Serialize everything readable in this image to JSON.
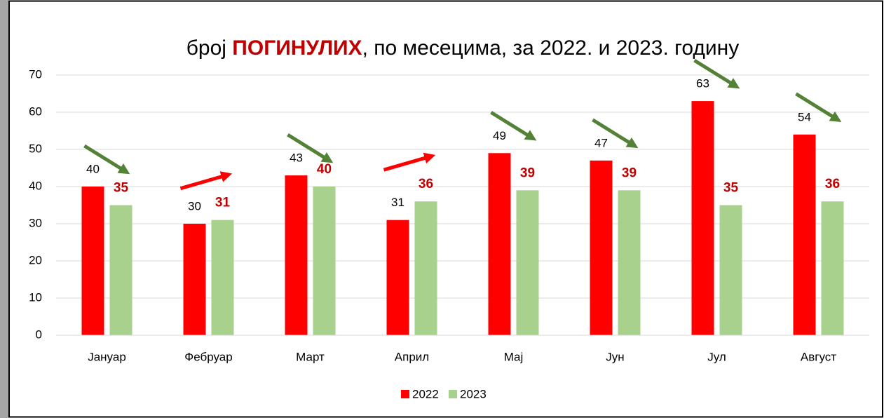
{
  "chart_data": {
    "type": "bar",
    "title_parts": [
      "број ",
      "ПОГИНУЛИХ",
      ", по месецима, за 2022. и 2023. годину"
    ],
    "categories": [
      "Јануар",
      "Фебруар",
      "Март",
      "Април",
      "Мај",
      "Јун",
      "Јул",
      "Август"
    ],
    "series": [
      {
        "name": "2022",
        "color": "#ff0000",
        "values": [
          40,
          30,
          43,
          31,
          49,
          47,
          63,
          54
        ]
      },
      {
        "name": "2023",
        "color": "#a9d18e",
        "values": [
          35,
          31,
          40,
          36,
          39,
          39,
          35,
          36
        ]
      }
    ],
    "ylim": [
      0,
      70
    ],
    "yticks": [
      0,
      10,
      20,
      30,
      40,
      50,
      60,
      70
    ],
    "grid": true,
    "legend": "bottom",
    "arrow_colors": {
      "down": "#538135",
      "up": "#ff0000"
    }
  }
}
